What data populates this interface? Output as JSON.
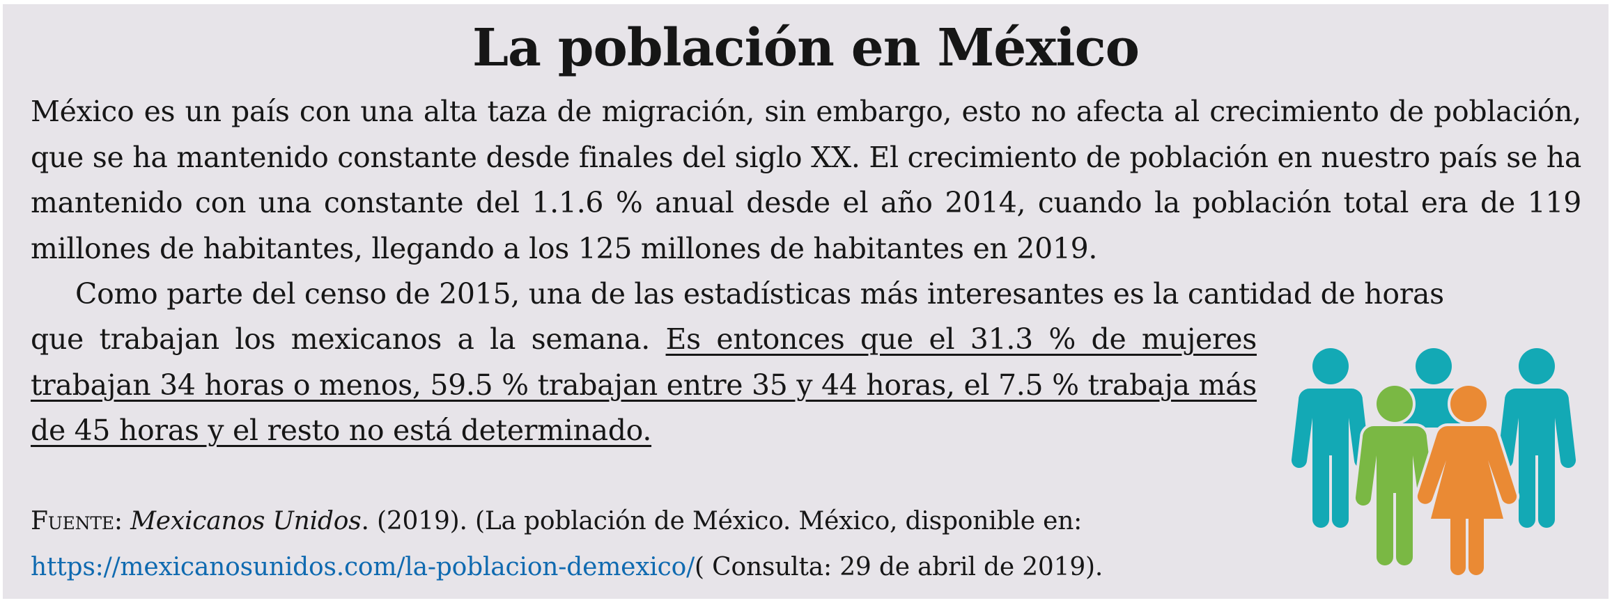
{
  "title": "La población en México",
  "paragraph1": "México es un país con una alta taza de migración, sin embargo, esto no afecta al crecimiento de población, que se ha mantenido constante desde finales del siglo XX. El crecimiento de población en nuestro país se ha mantenido con una constante del 1.1.6 % anual desde el año 2014, cuando la población total era de 119 millones de habitantes, llegando a los 125 millones de habitantes en 2019.",
  "paragraph2_line1": "Como parte del censo de 2015, una de las estadísticas más interesantes es la cantidad de horas",
  "paragraph2_plain": "que trabajan los mexicanos a la semana. ",
  "paragraph2_underlined": "Es entonces que el 31.3 % de mujeres trabajan 34 horas o menos, 59.5 % trabajan entre 35 y 44 horas, el 7.5 % trabaja más de 45 horas y el resto no está determinado.",
  "source": {
    "label": "Fuente:",
    "publisher": "Mexicanos Unidos",
    "details": ". (2019). (La población de México. México, disponible en:",
    "url": "https://mexicanosunidos.com/la-poblacion-demexico/",
    "consulta": "( Consulta: 29 de abril de 2019)."
  },
  "illustration": {
    "icon": "people-group-icon",
    "colors": {
      "teal": "#13a9b5",
      "green": "#7ab844",
      "orange": "#ea8a34",
      "background": "#e7e4e9"
    }
  }
}
